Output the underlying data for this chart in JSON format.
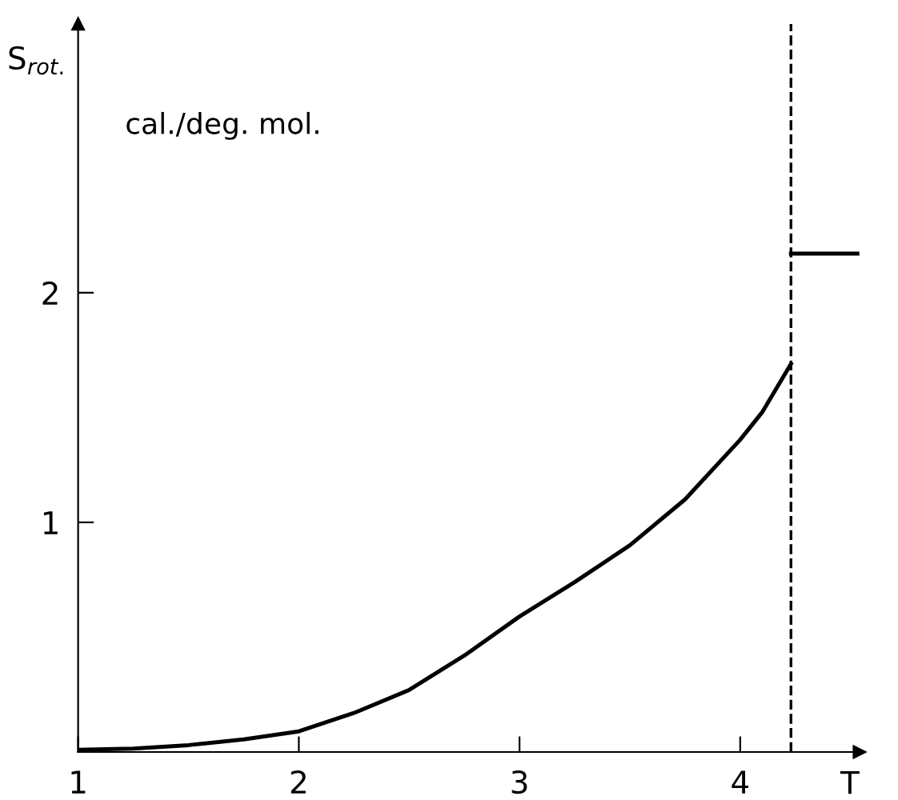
{
  "chart_data": {
    "type": "line",
    "ylabel": "S$_{rot.}$",
    "xlabel": "T",
    "annotations": [
      "cal./deg. mol."
    ],
    "series": [
      {
        "color": "#000000",
        "x": [
          1,
          1.25,
          1.5,
          1.75,
          2,
          2.25,
          2.5,
          2.75,
          3,
          3.25,
          3.5,
          3.75,
          4,
          4.1,
          4.23
        ],
        "values": [
          0.01,
          0.015,
          0.03,
          0.055,
          0.09,
          0.17,
          0.27,
          0.42,
          0.59,
          0.74,
          0.9,
          1.1,
          1.36,
          1.48,
          1.69
        ]
      },
      {
        "color": "#000000",
        "x": [
          4.23,
          4.54
        ],
        "values": [
          2.17,
          2.17
        ]
      }
    ],
    "ref_lines": [
      {
        "axis": "x",
        "value": 4.23,
        "color": "#000000",
        "line_style": "dashed"
      }
    ],
    "xlim": [
      1,
      4.54
    ],
    "ylim": [
      0,
      3.17
    ],
    "xticks": [
      1,
      2,
      3,
      4
    ],
    "yticks": [
      1,
      2
    ],
    "grid": false,
    "legend": false,
    "marker": "none",
    "line_style": "solid"
  }
}
